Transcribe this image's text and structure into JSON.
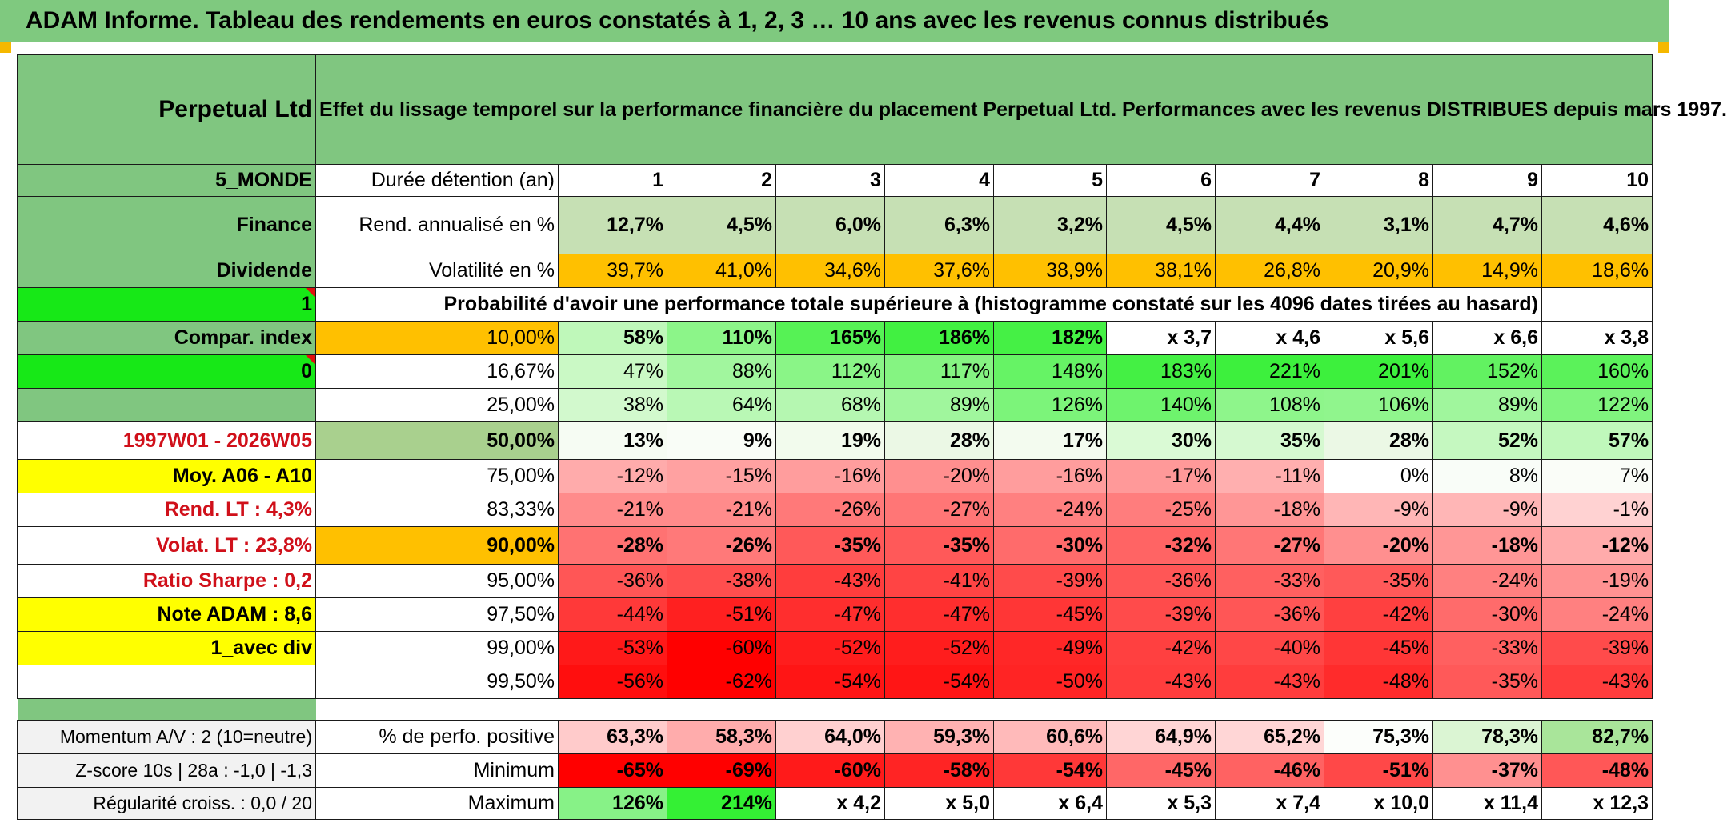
{
  "title": "ADAM Informe. Tableau des rendements en euros constatés à 1, 2, 3 … 10 ans avec les revenus connus distribués",
  "header": {
    "fund": "Perpetual Ltd",
    "description": "Effet du lissage temporel sur la performance financière du placement Perpetual Ltd. Performances avec les revenus DISTRIBUES depuis mars 1997."
  },
  "side": {
    "category": "5_MONDE",
    "sector": "Finance",
    "type": "Dividende",
    "flag1": "1",
    "compar_label": "Compar. index",
    "flag0": "0",
    "period": "1997W01 - 2026W05",
    "moy": "Moy. A06 - A10",
    "rend_lt": "Rend. LT :   4,3%",
    "volat_lt": "Volat. LT :   23,8%",
    "sharpe": "Ratio Sharpe :    0,2",
    "note": "Note ADAM : 8,6",
    "avec_div": "1_avec div",
    "momentum": "Momentum A/V : 2 (10=neutre)",
    "zscore": "Z-score 10s | 28a : -1,0 | -1,3",
    "regularite": "Régularité croiss. : 0,0 / 20"
  },
  "table": {
    "duration_label": "Durée détention (an)",
    "years": [
      "1",
      "2",
      "3",
      "4",
      "5",
      "6",
      "7",
      "8",
      "9",
      "10"
    ],
    "rend_label": "Rend. annualisé en %",
    "rend": [
      "12,7%",
      "4,5%",
      "6,0%",
      "6,3%",
      "3,2%",
      "4,5%",
      "4,4%",
      "3,1%",
      "4,7%",
      "4,6%"
    ],
    "vol_label": "Volatilité en %",
    "vol": [
      "39,7%",
      "41,0%",
      "34,6%",
      "37,6%",
      "38,9%",
      "38,1%",
      "26,8%",
      "20,9%",
      "14,9%",
      "18,6%"
    ],
    "proba_label": "Probabilité d'avoir une performance totale supérieure à (histogramme constaté sur les 4096 dates tirées au hasard)",
    "quantiles": [
      {
        "p": "10,00%",
        "v": [
          "58%",
          "110%",
          "165%",
          "186%",
          "182%",
          "x 3,7",
          "x 4,6",
          "x 5,6",
          "x 6,6",
          "x 3,8"
        ]
      },
      {
        "p": "16,67%",
        "v": [
          "47%",
          "88%",
          "112%",
          "117%",
          "148%",
          "183%",
          "221%",
          "201%",
          "152%",
          "160%"
        ]
      },
      {
        "p": "25,00%",
        "v": [
          "38%",
          "64%",
          "68%",
          "89%",
          "126%",
          "140%",
          "108%",
          "106%",
          "89%",
          "122%"
        ]
      },
      {
        "p": "50,00%",
        "v": [
          "13%",
          "9%",
          "19%",
          "28%",
          "17%",
          "30%",
          "35%",
          "28%",
          "52%",
          "57%"
        ]
      },
      {
        "p": "75,00%",
        "v": [
          "-12%",
          "-15%",
          "-16%",
          "-20%",
          "-16%",
          "-17%",
          "-11%",
          "0%",
          "8%",
          "7%"
        ]
      },
      {
        "p": "83,33%",
        "v": [
          "-21%",
          "-21%",
          "-26%",
          "-27%",
          "-24%",
          "-25%",
          "-18%",
          "-9%",
          "-9%",
          "-1%"
        ]
      },
      {
        "p": "90,00%",
        "v": [
          "-28%",
          "-26%",
          "-35%",
          "-35%",
          "-30%",
          "-32%",
          "-27%",
          "-20%",
          "-18%",
          "-12%"
        ]
      },
      {
        "p": "95,00%",
        "v": [
          "-36%",
          "-38%",
          "-43%",
          "-41%",
          "-39%",
          "-36%",
          "-33%",
          "-35%",
          "-24%",
          "-19%"
        ]
      },
      {
        "p": "97,50%",
        "v": [
          "-44%",
          "-51%",
          "-47%",
          "-47%",
          "-45%",
          "-39%",
          "-36%",
          "-42%",
          "-30%",
          "-24%"
        ]
      },
      {
        "p": "99,00%",
        "v": [
          "-53%",
          "-60%",
          "-52%",
          "-52%",
          "-49%",
          "-42%",
          "-40%",
          "-45%",
          "-33%",
          "-39%"
        ]
      },
      {
        "p": "99,50%",
        "v": [
          "-56%",
          "-62%",
          "-54%",
          "-54%",
          "-50%",
          "-43%",
          "-43%",
          "-48%",
          "-35%",
          "-43%"
        ]
      }
    ],
    "pos_label": "% de perfo. positive",
    "pos": [
      "63,3%",
      "58,3%",
      "64,0%",
      "59,3%",
      "60,6%",
      "64,9%",
      "65,2%",
      "75,3%",
      "78,3%",
      "82,7%"
    ],
    "min_label": "Minimum",
    "min": [
      "-65%",
      "-69%",
      "-60%",
      "-58%",
      "-54%",
      "-45%",
      "-46%",
      "-51%",
      "-37%",
      "-48%"
    ],
    "max_label": "Maximum",
    "max": [
      "126%",
      "214%",
      "x 4,2",
      "x 5,0",
      "x 6,4",
      "x 5,3",
      "x 7,4",
      "x 10,0",
      "x 11,4",
      "x 12,3"
    ]
  },
  "colors": {
    "header_green": "#7fc97f",
    "side_green": "#80c680",
    "bright_green": "#17e817",
    "yellow": "#ffff00",
    "orange": "#ffc000",
    "light_green": "#c6e0b4",
    "red_text": "#d0101a"
  }
}
